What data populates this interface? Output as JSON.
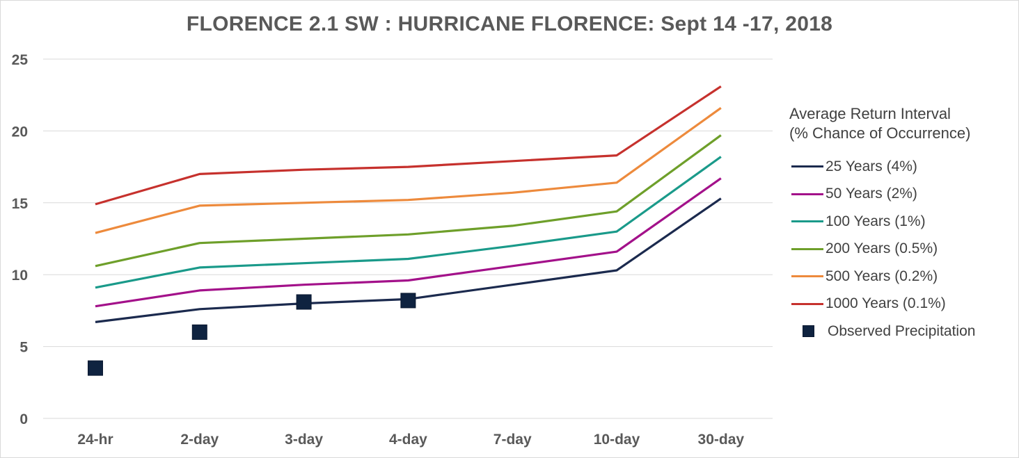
{
  "chart_data": {
    "type": "line",
    "title": "FLORENCE 2.1 SW : HURRICANE FLORENCE: Sept 14 -17, 2018",
    "categories": [
      "24-hr",
      "2-day",
      "3-day",
      "4-day",
      "7-day",
      "10-day",
      "30-day"
    ],
    "ylim": [
      0,
      25
    ],
    "yticks": [
      "0",
      "5",
      "10",
      "15",
      "20",
      "25"
    ],
    "grid": true,
    "legend_placement": "right",
    "legend_title": [
      "Average Return Interval",
      "(% Chance of Occurrence)"
    ],
    "series": [
      {
        "name": "25 Years (4%)",
        "color": "#1b2a4e",
        "values": [
          6.7,
          7.6,
          8.0,
          8.3,
          9.3,
          10.3,
          15.3
        ]
      },
      {
        "name": "50 Years (2%)",
        "color": "#a3118a",
        "values": [
          7.8,
          8.9,
          9.3,
          9.6,
          10.6,
          11.6,
          16.7
        ]
      },
      {
        "name": "100 Years (1%)",
        "color": "#1a9a8a",
        "values": [
          9.1,
          10.5,
          10.8,
          11.1,
          12.0,
          13.0,
          18.2
        ]
      },
      {
        "name": "200 Years (0.5%)",
        "color": "#6e9f2a",
        "values": [
          10.6,
          12.2,
          12.5,
          12.8,
          13.4,
          14.4,
          19.7
        ]
      },
      {
        "name": "500 Years (0.2%)",
        "color": "#ed8a3c",
        "values": [
          12.9,
          14.8,
          15.0,
          15.2,
          15.7,
          16.4,
          21.6
        ]
      },
      {
        "name": "1000 Years (0.1%)",
        "color": "#c6312d",
        "values": [
          14.9,
          17.0,
          17.3,
          17.5,
          17.9,
          18.3,
          23.1
        ]
      }
    ],
    "observed": {
      "name": "Observed Precipitation",
      "color": "#0f2340",
      "points": [
        {
          "x": "24-hr",
          "y": 3.5
        },
        {
          "x": "2-day",
          "y": 6.0
        },
        {
          "x": "3-day",
          "y": 8.1
        },
        {
          "x": "4-day",
          "y": 8.2
        }
      ]
    }
  }
}
